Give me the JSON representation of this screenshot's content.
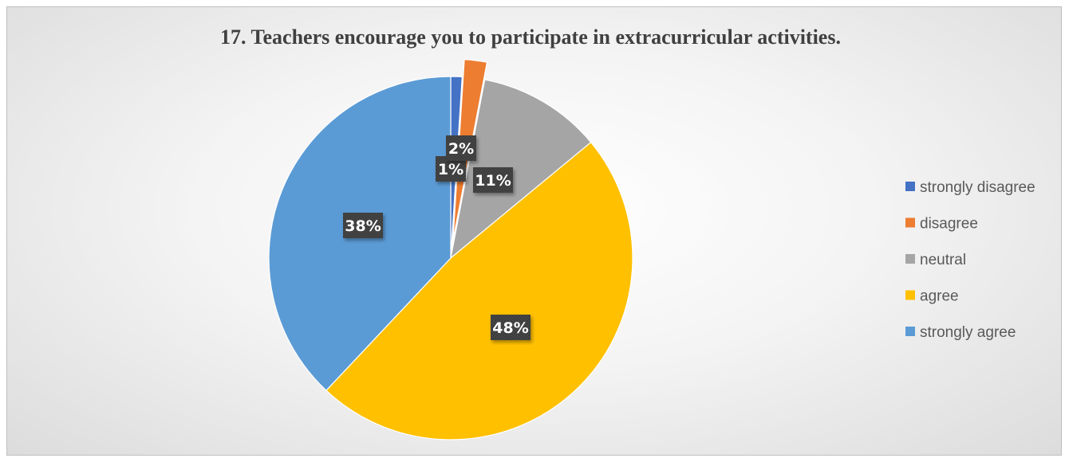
{
  "chart_data": {
    "type": "pie",
    "title": "17. Teachers encourage you to participate in extracurricular activities.",
    "categories": [
      "strongly disagree",
      "disagree",
      "neutral",
      "agree",
      "strongly agree"
    ],
    "values": [
      1,
      2,
      11,
      48,
      38
    ],
    "labels": [
      "1%",
      "2%",
      "11%",
      "48%",
      "38%"
    ],
    "colors": [
      "#4472c4",
      "#ed7d31",
      "#a5a5a5",
      "#ffc000",
      "#5b9bd5"
    ],
    "exploded": [
      false,
      true,
      false,
      false,
      false
    ],
    "legend_position": "right"
  }
}
